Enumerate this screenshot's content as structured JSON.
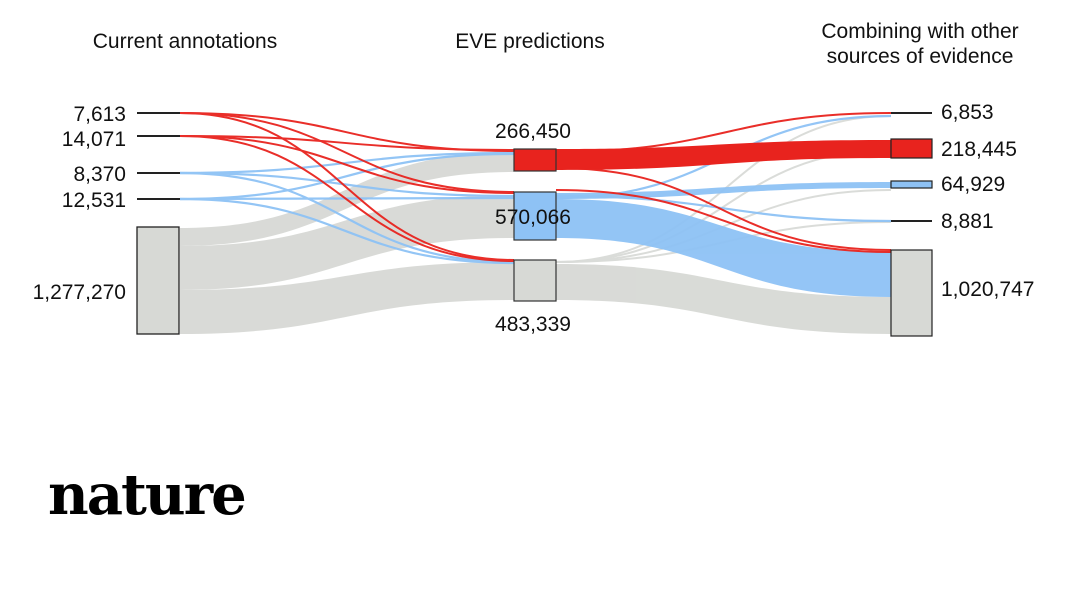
{
  "titles": {
    "left": "Current annotations",
    "middle": "EVE predictions",
    "right": "Combining with other\nsources of evidence"
  },
  "colors": {
    "pathogenic": "#e8231e",
    "benign": "#8ec2f5",
    "uncertain": "#d7d9d5",
    "node_stroke": "#333333"
  },
  "nodes": {
    "left": [
      {
        "label": "7,613",
        "value": 7613,
        "class": "pathogenic"
      },
      {
        "label": "14,071",
        "value": 14071,
        "class": "likely-pathogenic"
      },
      {
        "label": "8,370",
        "value": 8370,
        "class": "benign"
      },
      {
        "label": "12,531",
        "value": 12531,
        "class": "likely-benign"
      },
      {
        "label": "1,277,270",
        "value": 1277270,
        "class": "uncertain"
      }
    ],
    "middle": [
      {
        "label": "266,450",
        "value": 266450,
        "class": "pathogenic"
      },
      {
        "label": "570,066",
        "value": 570066,
        "class": "benign"
      },
      {
        "label": "483,339",
        "value": 483339,
        "class": "uncertain"
      }
    ],
    "right": [
      {
        "label": "6,853",
        "value": 6853,
        "class": "pathogenic"
      },
      {
        "label": "218,445",
        "value": 218445,
        "class": "likely-pathogenic"
      },
      {
        "label": "64,929",
        "value": 64929,
        "class": "likely-benign"
      },
      {
        "label": "8,881",
        "value": 8881,
        "class": "benign"
      },
      {
        "label": "1,020,747",
        "value": 1020747,
        "class": "uncertain"
      }
    ]
  },
  "logo": {
    "text": "nature"
  }
}
